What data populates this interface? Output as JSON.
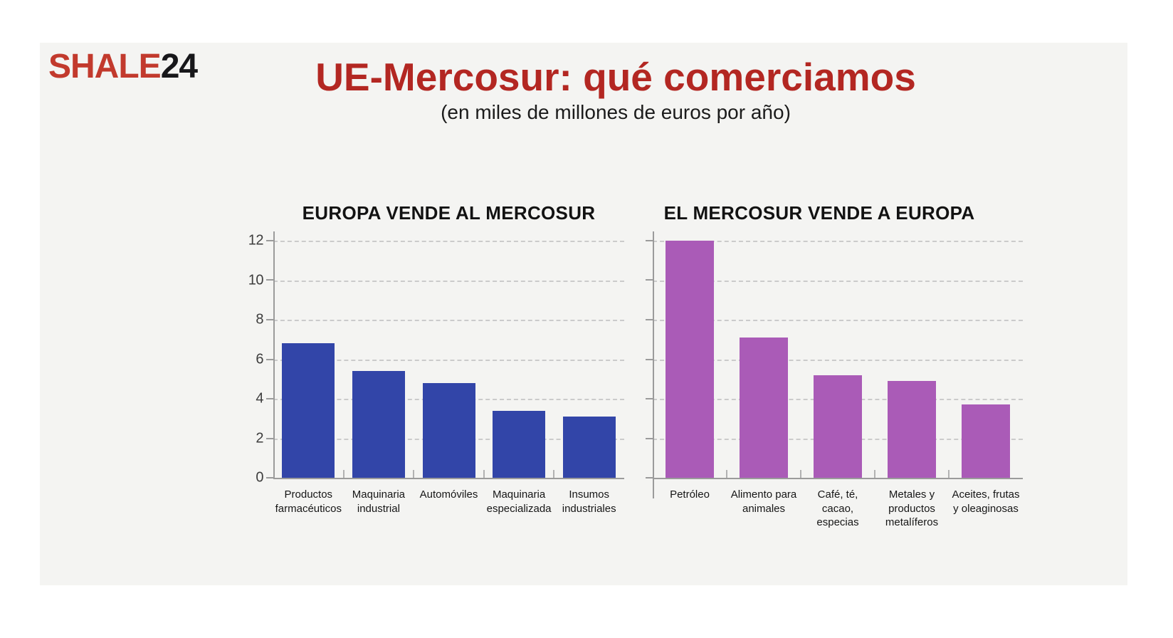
{
  "logo": {
    "part1": "SHALE",
    "part2": "24"
  },
  "header": {
    "title": "UE-Mercosur: qué comerciamos",
    "subtitle": "(en miles de millones de euros por año)"
  },
  "colors": {
    "logo_red": "#c23a2d",
    "title_red": "#b32722",
    "panel_background": "#f4f4f2",
    "left_bar_blue": "#3245a8",
    "right_bar_purple": "#aa5bb7",
    "axis_gray": "#9b9b9b",
    "gridline_gray": "#cbcbcb"
  },
  "chart_data": [
    {
      "type": "bar",
      "title": "EUROPA VENDE AL MERCOSUR",
      "categories": [
        "Productos\nfarmacéuticos",
        "Maquinaria\nindustrial",
        "Automóviles",
        "Maquinaria\nespecializada",
        "Insumos\nindustriales"
      ],
      "values": [
        6.8,
        5.4,
        4.8,
        3.4,
        3.1
      ],
      "bar_color": "#3245a8",
      "ylim": [
        0,
        12
      ],
      "yticks": [
        0,
        2,
        4,
        6,
        8,
        10,
        12
      ],
      "yticklabels_visible": true,
      "grid": "dashed-horizontal",
      "legend": "none"
    },
    {
      "type": "bar",
      "title": "EL MERCOSUR VENDE A EUROPA",
      "categories": [
        "Petróleo",
        "Alimento para\nanimales",
        "Café, té,\ncacao,\nespecias",
        "Metales y\nproductos\nmetalíferos",
        "Aceites, frutas\ny oleaginosas"
      ],
      "values": [
        12.0,
        7.1,
        5.2,
        4.9,
        3.7
      ],
      "bar_color": "#aa5bb7",
      "ylim": [
        0,
        12
      ],
      "yticks": [
        0,
        2,
        4,
        6,
        8,
        10,
        12
      ],
      "yticklabels_visible": false,
      "grid": "dashed-horizontal",
      "legend": "none"
    }
  ]
}
